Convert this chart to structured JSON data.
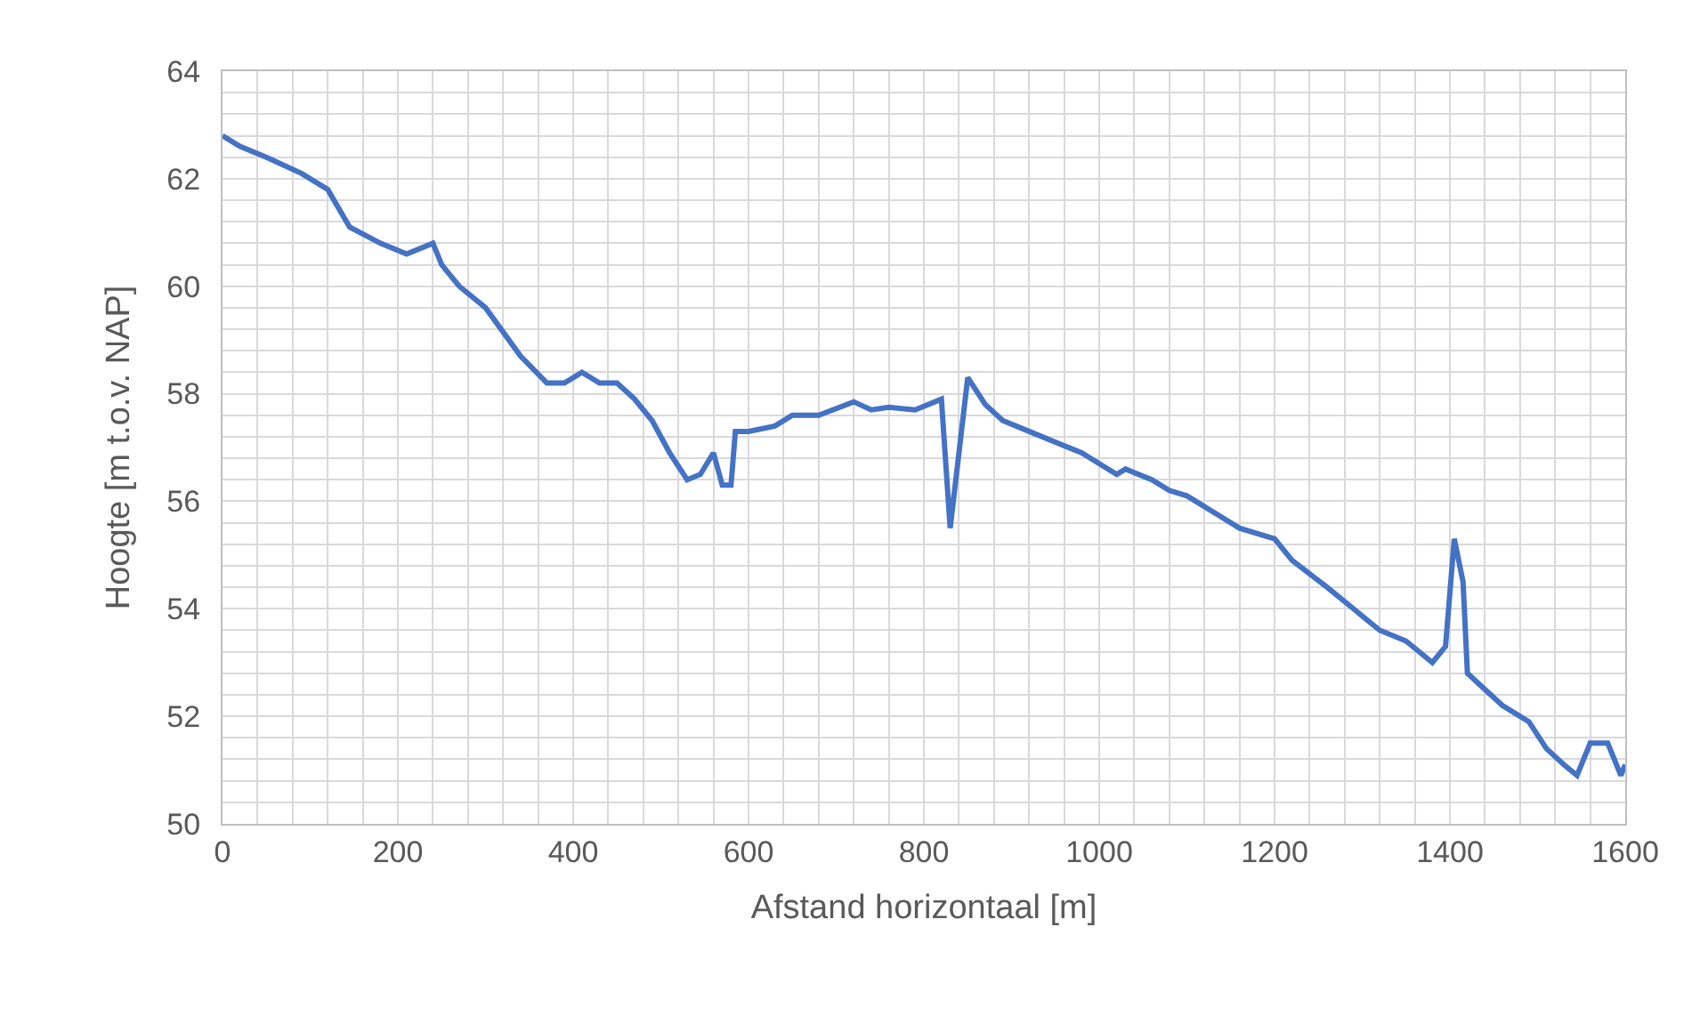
{
  "chart_data": {
    "type": "line",
    "xlabel": "Afstand horizontaal [m]",
    "ylabel": "Hoogte [m t.o.v. NAP]",
    "x": [
      0,
      20,
      50,
      90,
      120,
      145,
      180,
      210,
      240,
      250,
      270,
      300,
      340,
      370,
      390,
      410,
      430,
      450,
      470,
      490,
      510,
      530,
      545,
      560,
      570,
      580,
      585,
      600,
      630,
      650,
      680,
      720,
      740,
      760,
      790,
      820,
      830,
      850,
      870,
      890,
      920,
      950,
      980,
      1020,
      1030,
      1060,
      1080,
      1100,
      1140,
      1160,
      1200,
      1220,
      1260,
      1290,
      1320,
      1350,
      1380,
      1395,
      1405,
      1415,
      1420,
      1440,
      1460,
      1490,
      1510,
      1530,
      1545,
      1560,
      1580,
      1595,
      1600
    ],
    "series": [
      {
        "color": "#4472c4",
        "values": [
          62.8,
          62.6,
          62.4,
          62.1,
          61.8,
          61.1,
          60.8,
          60.6,
          60.8,
          60.4,
          60.0,
          59.6,
          58.7,
          58.2,
          58.2,
          58.4,
          58.2,
          58.2,
          57.9,
          57.5,
          56.9,
          56.4,
          56.5,
          56.9,
          56.3,
          56.3,
          57.3,
          57.3,
          57.4,
          57.6,
          57.6,
          57.85,
          57.7,
          57.75,
          57.7,
          57.9,
          55.5,
          58.3,
          57.8,
          57.5,
          57.3,
          57.1,
          56.9,
          56.5,
          56.6,
          56.4,
          56.2,
          56.1,
          55.7,
          55.5,
          55.3,
          54.9,
          54.4,
          54.0,
          53.6,
          53.4,
          53.0,
          53.3,
          55.3,
          54.5,
          52.8,
          52.5,
          52.2,
          51.9,
          51.4,
          51.1,
          50.9,
          51.5,
          51.5,
          50.9,
          51.1
        ]
      }
    ],
    "xlim": [
      0,
      1600
    ],
    "ylim": [
      50,
      64
    ],
    "xticks": [
      0,
      {
        "value": 40,
        "label": null
      },
      {
        "value": 80,
        "label": null
      },
      {
        "value": 120,
        "label": null
      },
      {
        "value": 160,
        "label": null
      },
      200,
      {
        "value": 240,
        "label": null
      },
      {
        "value": 280,
        "label": null
      },
      {
        "value": 320,
        "label": null
      },
      {
        "value": 360,
        "label": null
      },
      400,
      {
        "value": 440,
        "label": null
      },
      {
        "value": 480,
        "label": null
      },
      {
        "value": 520,
        "label": null
      },
      {
        "value": 560,
        "label": null
      },
      600,
      {
        "value": 640,
        "label": null
      },
      {
        "value": 680,
        "label": null
      },
      {
        "value": 720,
        "label": null
      },
      {
        "value": 760,
        "label": null
      },
      800,
      {
        "value": 840,
        "label": null
      },
      {
        "value": 880,
        "label": null
      },
      {
        "value": 920,
        "label": null
      },
      {
        "value": 960,
        "label": null
      },
      1000,
      {
        "value": 1040,
        "label": null
      },
      {
        "value": 1080,
        "label": null
      },
      {
        "value": 1120,
        "label": null
      },
      {
        "value": 1160,
        "label": null
      },
      1200,
      {
        "value": 1240,
        "label": null
      },
      {
        "value": 1280,
        "label": null
      },
      {
        "value": 1320,
        "label": null
      },
      {
        "value": 1360,
        "label": null
      },
      1400,
      {
        "value": 1440,
        "label": null
      },
      {
        "value": 1480,
        "label": null
      },
      {
        "value": 1520,
        "label": null
      },
      {
        "value": 1560,
        "label": null
      },
      1600
    ],
    "yticks": [
      50,
      {
        "value": 50.4,
        "label": null
      },
      {
        "value": 50.8,
        "label": null
      },
      {
        "value": 51.2,
        "label": null
      },
      {
        "value": 51.6,
        "label": null
      },
      52,
      {
        "value": 52.4,
        "label": null
      },
      {
        "value": 52.8,
        "label": null
      },
      {
        "value": 53.2,
        "label": null
      },
      {
        "value": 53.6,
        "label": null
      },
      54,
      {
        "value": 54.4,
        "label": null
      },
      {
        "value": 54.8,
        "label": null
      },
      {
        "value": 55.2,
        "label": null
      },
      {
        "value": 55.6,
        "label": null
      },
      56,
      {
        "value": 56.4,
        "label": null
      },
      {
        "value": 56.8,
        "label": null
      },
      {
        "value": 57.2,
        "label": null
      },
      {
        "value": 57.6,
        "label": null
      },
      58,
      {
        "value": 58.4,
        "label": null
      },
      {
        "value": 58.8,
        "label": null
      },
      {
        "value": 59.2,
        "label": null
      },
      {
        "value": 59.6,
        "label": null
      },
      60,
      {
        "value": 60.4,
        "label": null
      },
      {
        "value": 60.8,
        "label": null
      },
      {
        "value": 61.2,
        "label": null
      },
      {
        "value": 61.6,
        "label": null
      },
      62,
      {
        "value": 62.4,
        "label": null
      },
      {
        "value": 62.8,
        "label": null
      },
      {
        "value": 63.2,
        "label": null
      },
      {
        "value": 63.6,
        "label": null
      },
      64
    ],
    "grid": true,
    "marker": "none",
    "line_style": "solid"
  }
}
